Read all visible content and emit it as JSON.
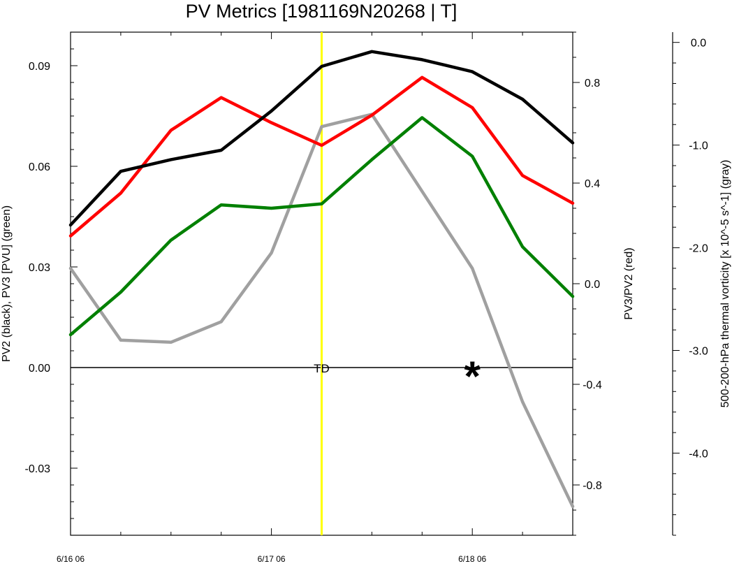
{
  "chart_data": {
    "type": "line",
    "title": "PV Metrics [1981169N20268 | T]",
    "x": [
      "6/16 06",
      "6/16 12",
      "6/16 18",
      "6/17 00",
      "6/17 06",
      "6/17 12",
      "6/17 18",
      "6/18 00",
      "6/18 06",
      "6/18 12",
      "6/18 18"
    ],
    "x_tick_labels": [
      "6/16 06",
      "6/17 06",
      "6/18 06"
    ],
    "left_axis": {
      "label": "PV2 (black), PV3 [PVU] (green)",
      "ylim": [
        -0.05,
        0.1
      ],
      "tick_labels": [
        "-0.03",
        "0.00",
        "0.03",
        "0.06",
        "0.09"
      ]
    },
    "right_axis": {
      "label": "PV3/PV2 (red)",
      "ylim": [
        -1.0,
        1.0
      ],
      "tick_labels": [
        "-0.8",
        "-0.4",
        "0.0",
        "0.4",
        "0.8"
      ]
    },
    "far_right_axis": {
      "label": "500-200-hPa thermal vorticity [x 10^-5 s^-1] (gray)",
      "ylim": [
        -4.8,
        0.1
      ],
      "tick_labels": [
        "-4.0",
        "-3.0",
        "-2.0",
        "-1.0",
        "0.0"
      ]
    },
    "series": [
      {
        "key": "pv2",
        "axis": "left",
        "color": "#000000",
        "values": [
          0.0425,
          0.0585,
          0.062,
          0.0648,
          0.0765,
          0.0898,
          0.0942,
          0.0918,
          0.0882,
          0.08,
          0.067
        ]
      },
      {
        "key": "pv3",
        "axis": "left",
        "color": "#008000",
        "values": [
          0.0098,
          0.0225,
          0.038,
          0.0485,
          0.0475,
          0.0488,
          0.062,
          0.0745,
          0.063,
          0.036,
          0.0212
        ]
      },
      {
        "key": "ratio",
        "axis": "right",
        "color": "#ff0000",
        "values": [
          0.19,
          0.36,
          0.61,
          0.74,
          0.64,
          0.55,
          0.67,
          0.82,
          0.7,
          0.43,
          0.32
        ]
      },
      {
        "key": "thermal_vorticity",
        "axis": "far_right",
        "color": "#a0a0a0",
        "values": [
          -2.2,
          -2.9,
          -2.92,
          -2.72,
          -2.05,
          -0.82,
          -0.7,
          -1.45,
          -2.2,
          -3.5,
          -4.52
        ]
      }
    ],
    "reference_line": {
      "value": 0.0,
      "axis": "left"
    },
    "vertical_marker": {
      "x": "6/17 12",
      "color": "#ffff00"
    },
    "annotations": [
      {
        "text": "TD",
        "x": "6/17 12"
      },
      {
        "text": "*",
        "x": "6/18 06"
      }
    ],
    "grid": false,
    "legend": "none"
  }
}
